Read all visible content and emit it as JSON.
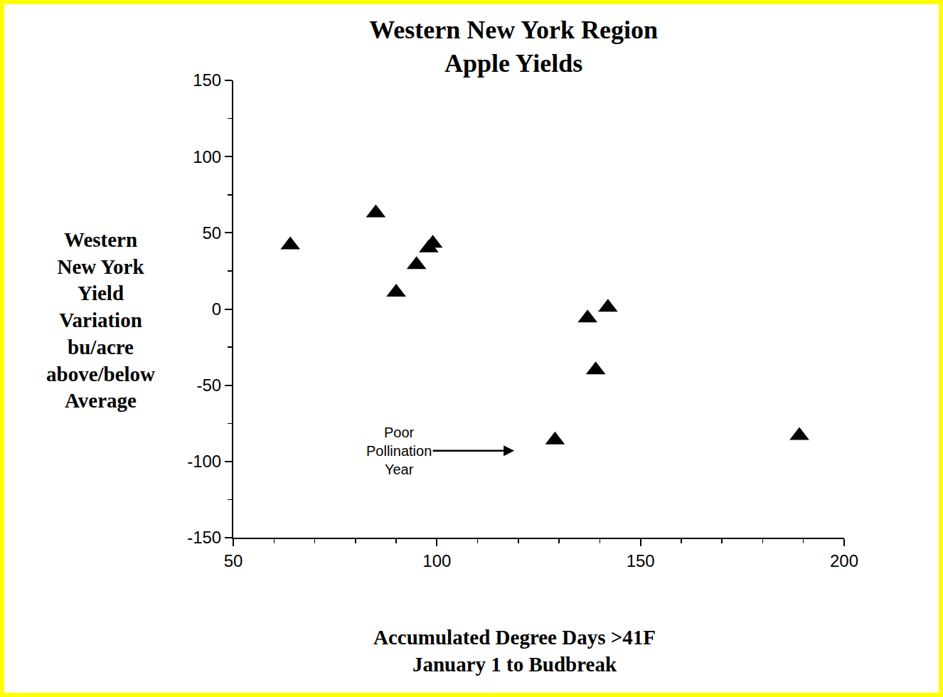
{
  "chart_data": {
    "type": "scatter",
    "title": "Western New York Region",
    "subtitle": "Apple Yields",
    "xlabel": [
      "Accumulated Degree Days >41F",
      "January 1 to Budbreak"
    ],
    "ylabel": [
      "Western",
      "New York",
      "Yield",
      "Variation",
      "bu/acre",
      "above/below",
      "Average"
    ],
    "x": [
      64,
      85,
      90,
      95,
      98,
      99,
      129,
      137,
      139,
      142,
      189
    ],
    "values": [
      42,
      63,
      11,
      29,
      40,
      43,
      -86,
      -6,
      -40,
      1,
      -83
    ],
    "color": "#000000",
    "marker": "triangle-up",
    "xlim": [
      50,
      200
    ],
    "xticks": [
      50,
      100,
      150,
      200
    ],
    "ylim": [
      -150,
      150
    ],
    "yticks": [
      -150,
      -100,
      -50,
      0,
      50,
      100,
      150
    ],
    "grid": false,
    "annotations": [
      {
        "text": [
          "Poor",
          "Pollination",
          "Year"
        ],
        "x": 119,
        "y": -93
      }
    ]
  }
}
